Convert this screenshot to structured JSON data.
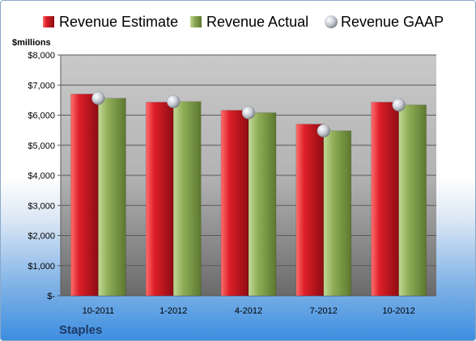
{
  "chart_data": {
    "type": "bar",
    "title": "",
    "ylabel": "$millions",
    "company": "Staples",
    "categories": [
      "10-2011",
      "1-2012",
      "4-2012",
      "7-2012",
      "10-2012"
    ],
    "series": [
      {
        "name": "Revenue Estimate",
        "kind": "bar",
        "color": "#c0141c",
        "values": [
          6700,
          6430,
          6160,
          5700,
          6430
        ]
      },
      {
        "name": "Revenue Actual",
        "kind": "bar",
        "color": "#8cab54",
        "values": [
          6560,
          6450,
          6080,
          5480,
          6340
        ]
      },
      {
        "name": "Revenue GAAP",
        "kind": "marker",
        "color": "#c8ccd4",
        "values": [
          6560,
          6450,
          6080,
          5480,
          6340
        ]
      }
    ],
    "ylim": [
      0,
      8000
    ],
    "yticks": [
      0,
      1000,
      2000,
      3000,
      4000,
      5000,
      6000,
      7000,
      8000
    ],
    "ytick_labels": [
      "$-",
      "$1,000",
      "$2,000",
      "$3,000",
      "$4,000",
      "$5,000",
      "$6,000",
      "$7,000",
      "$8,000"
    ],
    "grid": true,
    "legend_position": "top"
  }
}
